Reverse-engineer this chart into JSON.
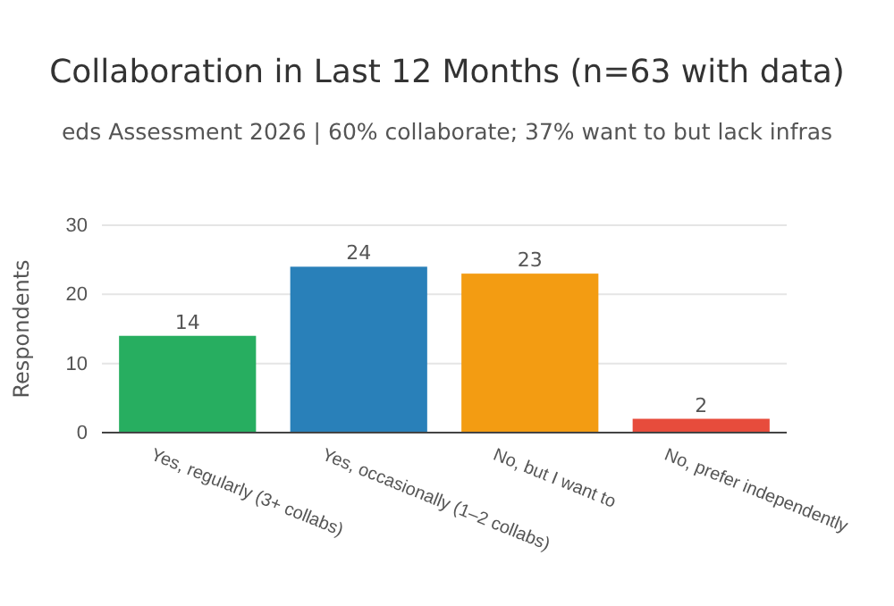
{
  "chart_data": {
    "type": "bar",
    "title": "Collaboration in Last 12 Months (n=63 with data)",
    "subtitle": "eds Assessment 2026 | 60% collaborate; 37% want to but lack infras",
    "ylabel": "Respondents",
    "categories": [
      "Yes, regularly (3+ collabs)",
      "Yes, occasionally (1–2 collabs)",
      "No, but I want to",
      "No, prefer independently"
    ],
    "values": [
      14,
      24,
      23,
      2
    ],
    "colors": [
      "#27ae60",
      "#2980b9",
      "#f39c12",
      "#e74c3c"
    ],
    "ylim": [
      0,
      30
    ],
    "yticks": [
      0,
      10,
      20,
      30
    ],
    "grid": "y",
    "data_labels": true
  }
}
